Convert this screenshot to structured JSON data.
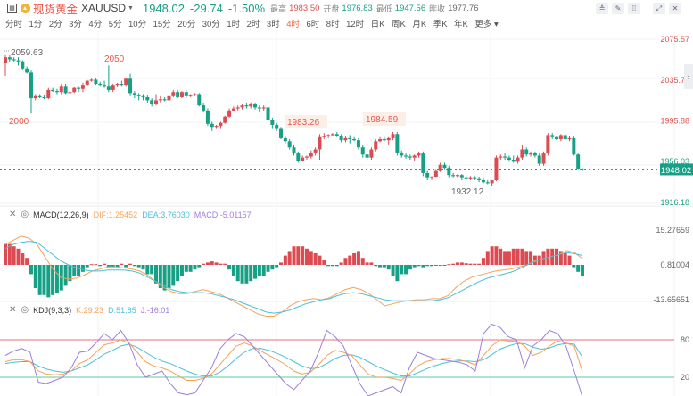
{
  "header": {
    "name_cn": "现货黄金",
    "symbol": "XAUUSD",
    "price": "1948.02",
    "change": "-29.74",
    "change_pct": "-1.50%",
    "high_label": "最高",
    "high": "1983.50",
    "open_label": "开盘",
    "open": "1976.83",
    "low_label": "最低",
    "low": "1947.56",
    "prev_close_label": "昨收",
    "prev_close": "1977.76"
  },
  "toolbar": {
    "icons": [
      "indicator-icon",
      "draw-icon",
      "compare-icon",
      "fullscreen-icon",
      "close-icon"
    ]
  },
  "periods": [
    "分时",
    "1分",
    "2分",
    "3分",
    "4分",
    "5分",
    "10分",
    "15分",
    "20分",
    "30分",
    "1时",
    "2时",
    "3时",
    "4时",
    "6时",
    "8时",
    "12时",
    "日K",
    "周K",
    "月K",
    "季K",
    "年K",
    "更多"
  ],
  "active_period": "4时",
  "main_axis": {
    "labels": [
      "2075.57",
      "2035.72",
      "1995.88",
      "1956.03",
      "1916.18"
    ],
    "current": "1948.02"
  },
  "annotations": [
    {
      "text": "2059.63"
    },
    {
      "text": "2050"
    },
    {
      "text": "2000"
    },
    {
      "text": "1983.26"
    },
    {
      "text": "1984.59"
    },
    {
      "text": "1932.12"
    }
  ],
  "macd": {
    "name": "MACD(12,26,9)",
    "dif": "DIF:1.25452",
    "dea": "DEA:3.76030",
    "macd": "MACD:-5.01157",
    "axis": [
      "15.27659",
      "0.81004",
      "-13.65651"
    ]
  },
  "kdj": {
    "name": "KDJ(9,3,3)",
    "k": "K:29.23",
    "d": "D:51.85",
    "j": "J:-16.01",
    "axis": [
      "80",
      "20"
    ]
  },
  "colors": {
    "up": "#dc4a52",
    "down": "#17a085",
    "dif": "#f5a35a",
    "dea": "#4cbfd8",
    "j": "#9b7fdc",
    "kdj80": "#f08a9a",
    "kdj20": "#7ed3b8"
  },
  "chart_data": [
    {
      "type": "candlestick",
      "title": "现货黄金 XAUUSD 4时",
      "ylim": [
        1916.18,
        2075.57
      ],
      "yticks": [
        2075.57,
        2035.72,
        1995.88,
        1956.03,
        1916.18
      ],
      "annotations": {
        "high1": 2059.63,
        "round1": 2050,
        "round2": 2000,
        "high2": 1983.26,
        "high3": 1984.59,
        "low": 1932.12,
        "last": 1948.02
      },
      "ohlc": [
        [
          2052,
          2060,
          2040,
          2058
        ],
        [
          2058,
          2060,
          2053,
          2056
        ],
        [
          2056,
          2058,
          2054,
          2055
        ],
        [
          2055,
          2058,
          2050,
          2054
        ],
        [
          2054,
          2055,
          2046,
          2047
        ],
        [
          2047,
          2049,
          2042,
          2043
        ],
        [
          2043,
          2045,
          2003,
          2018
        ],
        [
          2018,
          2022,
          2016,
          2020
        ],
        [
          2020,
          2022,
          2018,
          2019
        ],
        [
          2019,
          2021,
          2017,
          2018
        ],
        [
          2018,
          2028,
          2017,
          2026
        ],
        [
          2026,
          2028,
          2024,
          2025
        ],
        [
          2025,
          2027,
          2022,
          2024
        ],
        [
          2024,
          2032,
          2022,
          2030
        ],
        [
          2030,
          2032,
          2022,
          2023
        ],
        [
          2023,
          2025,
          2022,
          2024
        ],
        [
          2024,
          2029,
          2023,
          2028
        ],
        [
          2028,
          2030,
          2024,
          2027
        ],
        [
          2027,
          2033,
          2024,
          2031
        ],
        [
          2031,
          2036,
          2030,
          2035
        ],
        [
          2035,
          2037,
          2034,
          2036
        ],
        [
          2036,
          2038,
          2031,
          2032
        ],
        [
          2032,
          2034,
          2030,
          2031
        ],
        [
          2031,
          2035,
          2028,
          2030
        ],
        [
          2030,
          2050,
          2024,
          2026
        ],
        [
          2026,
          2032,
          2024,
          2031
        ],
        [
          2031,
          2033,
          2029,
          2032
        ],
        [
          2032,
          2035,
          2030,
          2031
        ],
        [
          2031,
          2038,
          2030,
          2037
        ],
        [
          2037,
          2042,
          2020,
          2023
        ],
        [
          2023,
          2025,
          2018,
          2021
        ],
        [
          2021,
          2023,
          2016,
          2020
        ],
        [
          2020,
          2022,
          2016,
          2019
        ],
        [
          2019,
          2021,
          2013,
          2016
        ],
        [
          2016,
          2018,
          2010,
          2012
        ],
        [
          2012,
          2022,
          2011,
          2016
        ],
        [
          2016,
          2020,
          2014,
          2017
        ],
        [
          2017,
          2019,
          2015,
          2016
        ],
        [
          2016,
          2022,
          2015,
          2020
        ],
        [
          2020,
          2026,
          2019,
          2024
        ],
        [
          2024,
          2026,
          2018,
          2019
        ],
        [
          2019,
          2025,
          2018,
          2024
        ],
        [
          2024,
          2026,
          2018,
          2020
        ],
        [
          2020,
          2022,
          2019,
          2021
        ],
        [
          2021,
          2023,
          2020,
          2022
        ],
        [
          2022,
          2023,
          2010,
          2011
        ],
        [
          2011,
          2013,
          2004,
          2006
        ],
        [
          2006,
          2008,
          1991,
          1993
        ],
        [
          1993,
          1995,
          1986,
          1990
        ],
        [
          1990,
          1992,
          1988,
          1991
        ],
        [
          1991,
          1995,
          1988,
          1994
        ],
        [
          1994,
          2001,
          1993,
          2000
        ],
        [
          2000,
          2008,
          1999,
          2006
        ],
        [
          2006,
          2010,
          2005,
          2008
        ],
        [
          2008,
          2011,
          2006,
          2009
        ],
        [
          2009,
          2012,
          2007,
          2011
        ],
        [
          2011,
          2013,
          2008,
          2010
        ],
        [
          2010,
          2014,
          2008,
          2012
        ],
        [
          2012,
          2013,
          2007,
          2009
        ],
        [
          2009,
          2011,
          2004,
          2008
        ],
        [
          2008,
          2011,
          2006,
          2009
        ],
        [
          2009,
          2011,
          1996,
          1997
        ],
        [
          1997,
          1999,
          1988,
          1992
        ],
        [
          1992,
          1994,
          1986,
          1988
        ],
        [
          1988,
          1990,
          1978,
          1979
        ],
        [
          1979,
          1981,
          1974,
          1976
        ],
        [
          1976,
          1978,
          1968,
          1970
        ],
        [
          1970,
          1972,
          1962,
          1964
        ],
        [
          1964,
          1966,
          1955,
          1957
        ],
        [
          1957,
          1962,
          1956,
          1960
        ],
        [
          1960,
          1962,
          1958,
          1961
        ],
        [
          1961,
          1967,
          1959,
          1965
        ],
        [
          1965,
          1970,
          1962,
          1968
        ],
        [
          1968,
          1983,
          1958,
          1980
        ],
        [
          1980,
          1984,
          1978,
          1981
        ],
        [
          1981,
          1983,
          1979,
          1982
        ],
        [
          1982,
          1984,
          1981,
          1983
        ],
        [
          1983,
          1985,
          1980,
          1981
        ],
        [
          1981,
          1983,
          1975,
          1977
        ],
        [
          1977,
          1981,
          1975,
          1979
        ],
        [
          1979,
          1982,
          1974,
          1978
        ],
        [
          1978,
          1980,
          1976,
          1977
        ],
        [
          1977,
          1979,
          1968,
          1970
        ],
        [
          1970,
          1972,
          1960,
          1963
        ],
        [
          1963,
          1965,
          1957,
          1960
        ],
        [
          1960,
          1970,
          1958,
          1968
        ],
        [
          1968,
          1978,
          1966,
          1976
        ],
        [
          1976,
          1980,
          1975,
          1978
        ],
        [
          1978,
          1980,
          1976,
          1977
        ],
        [
          1977,
          1980,
          1972,
          1979
        ],
        [
          1979,
          1985,
          1977,
          1983
        ],
        [
          1983,
          1985,
          1962,
          1965
        ],
        [
          1965,
          1967,
          1960,
          1962
        ],
        [
          1962,
          1964,
          1959,
          1961
        ],
        [
          1961,
          1963,
          1958,
          1960
        ],
        [
          1960,
          1963,
          1957,
          1962
        ],
        [
          1962,
          1966,
          1960,
          1964
        ],
        [
          1964,
          1966,
          1942,
          1945
        ],
        [
          1945,
          1947,
          1938,
          1940
        ],
        [
          1940,
          1942,
          1938,
          1941
        ],
        [
          1941,
          1948,
          1940,
          1947
        ],
        [
          1947,
          1955,
          1946,
          1953
        ],
        [
          1953,
          1955,
          1948,
          1950
        ],
        [
          1950,
          1952,
          1940,
          1943
        ],
        [
          1943,
          1945,
          1940,
          1942
        ],
        [
          1942,
          1944,
          1940,
          1943
        ],
        [
          1943,
          1944,
          1938,
          1940
        ],
        [
          1940,
          1943,
          1937,
          1939
        ],
        [
          1939,
          1942,
          1938,
          1940
        ],
        [
          1940,
          1942,
          1938,
          1939
        ],
        [
          1939,
          1941,
          1936,
          1938
        ],
        [
          1938,
          1940,
          1935,
          1936
        ],
        [
          1936,
          1938,
          1934,
          1935
        ],
        [
          1935,
          1937,
          1932,
          1938
        ],
        [
          1938,
          1962,
          1937,
          1960
        ],
        [
          1960,
          1963,
          1958,
          1961
        ],
        [
          1961,
          1964,
          1958,
          1960
        ],
        [
          1960,
          1962,
          1956,
          1958
        ],
        [
          1958,
          1962,
          1955,
          1956
        ],
        [
          1956,
          1962,
          1954,
          1960
        ],
        [
          1960,
          1972,
          1958,
          1968
        ],
        [
          1968,
          1970,
          1961,
          1963
        ],
        [
          1963,
          1966,
          1961,
          1964
        ],
        [
          1964,
          1966,
          1960,
          1962
        ],
        [
          1962,
          1964,
          1952,
          1954
        ],
        [
          1954,
          1966,
          1952,
          1964
        ],
        [
          1964,
          1984,
          1962,
          1982
        ],
        [
          1982,
          1984,
          1978,
          1980
        ],
        [
          1980,
          1981,
          1977,
          1978
        ],
        [
          1978,
          1983,
          1976,
          1982
        ],
        [
          1982,
          1983,
          1977,
          1978
        ],
        [
          1978,
          1981,
          1976,
          1979
        ],
        [
          1979,
          1981,
          1962,
          1963
        ],
        [
          1963,
          1964,
          1948,
          1949
        ],
        [
          1949,
          1950,
          1947,
          1948
        ]
      ]
    },
    {
      "type": "bar+line",
      "title": "MACD(12,26,9)",
      "series": [
        {
          "name": "DIF",
          "last": 1.25452
        },
        {
          "name": "DEA",
          "last": 3.7603
        },
        {
          "name": "MACD",
          "last": -5.01157
        }
      ],
      "yticks": [
        15.27659,
        0.81004,
        -13.65651
      ]
    },
    {
      "type": "line",
      "title": "KDJ(9,3,3)",
      "series": [
        {
          "name": "K",
          "last": 29.23
        },
        {
          "name": "D",
          "last": 51.85
        },
        {
          "name": "J",
          "last": -16.01
        }
      ],
      "reference_lines": [
        80,
        20
      ]
    }
  ]
}
